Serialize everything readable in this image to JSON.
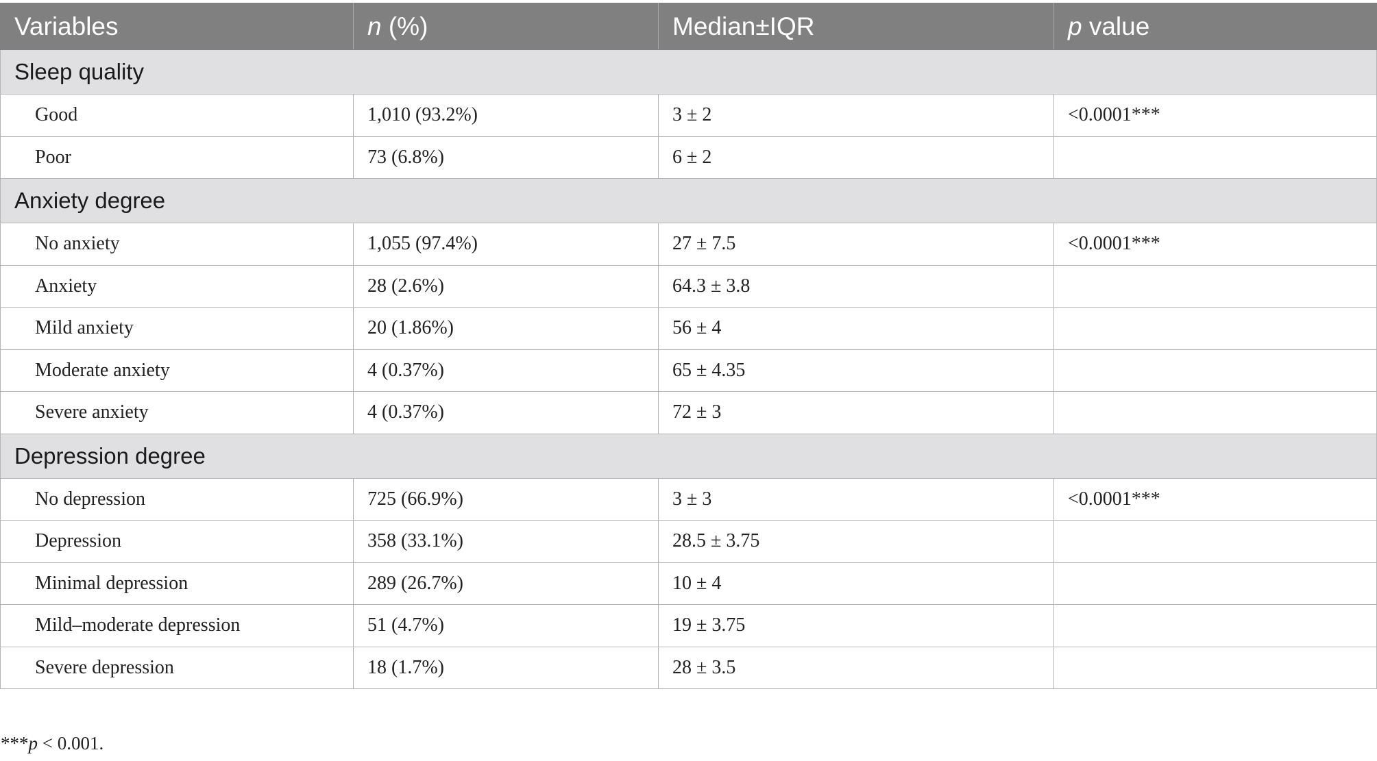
{
  "table": {
    "headers": {
      "variables": "Variables",
      "n_italic": "n",
      "n_rest": " (%)",
      "median": "Median±IQR",
      "p_italic": "p",
      "p_rest": " value"
    },
    "sections": [
      {
        "title": "Sleep quality",
        "rows": [
          {
            "variable": "Good",
            "n": "1,010 (93.2%)",
            "median": "3 ± 2",
            "p": "<0.0001***"
          },
          {
            "variable": "Poor",
            "n": "73 (6.8%)",
            "median": "6 ± 2",
            "p": ""
          }
        ]
      },
      {
        "title": "Anxiety degree",
        "rows": [
          {
            "variable": "No anxiety",
            "n": "1,055 (97.4%)",
            "median": "27 ± 7.5",
            "p": "<0.0001***"
          },
          {
            "variable": "Anxiety",
            "n": "28 (2.6%)",
            "median": "64.3 ± 3.8",
            "p": ""
          },
          {
            "variable": "Mild anxiety",
            "n": "20 (1.86%)",
            "median": "56 ± 4",
            "p": ""
          },
          {
            "variable": "Moderate anxiety",
            "n": "4 (0.37%)",
            "median": "65 ± 4.35",
            "p": ""
          },
          {
            "variable": "Severe anxiety",
            "n": "4 (0.37%)",
            "median": "72 ± 3",
            "p": ""
          }
        ]
      },
      {
        "title": "Depression degree",
        "rows": [
          {
            "variable": "No depression",
            "n": "725 (66.9%)",
            "median": "3 ± 3",
            "p": "<0.0001***"
          },
          {
            "variable": "Depression",
            "n": "358 (33.1%)",
            "median": "28.5 ± 3.75",
            "p": ""
          },
          {
            "variable": "Minimal depression",
            "n": "289 (26.7%)",
            "median": "10 ± 4",
            "p": ""
          },
          {
            "variable": "Mild–moderate depression",
            "n": "51 (4.7%)",
            "median": "19 ± 3.75",
            "p": ""
          },
          {
            "variable": "Severe depression",
            "n": "18 (1.7%)",
            "median": "28 ± 3.5",
            "p": ""
          }
        ]
      }
    ]
  },
  "footnote": {
    "stars": "***",
    "p_italic": "p",
    "rest": " < 0.001."
  }
}
